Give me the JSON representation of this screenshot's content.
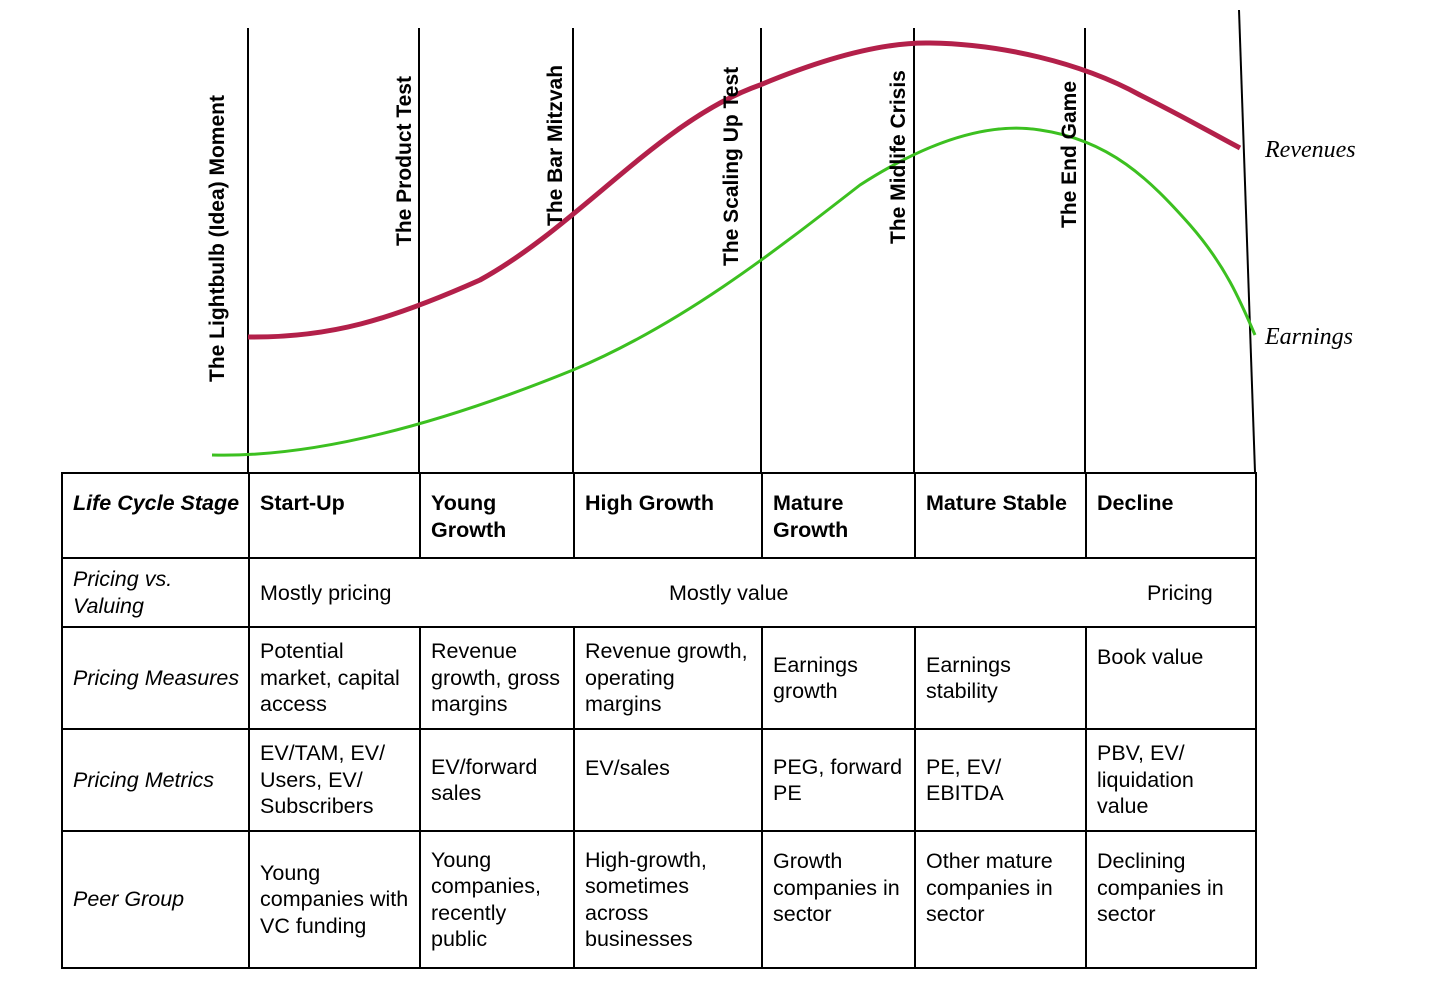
{
  "curves": {
    "revenues_label": "Revenues",
    "earnings_label": "Earnings",
    "revenues_color": "#b3204a",
    "earnings_color": "#3cc020"
  },
  "milestones": [
    "The Lightbulb (Idea) Moment",
    "The Product Test",
    "The Bar Mitzvah",
    "The Scaling Up Test",
    "The Midlife Crisis",
    "The End Game"
  ],
  "table": {
    "row_headers": {
      "stage": "Life Cycle Stage",
      "pricing_vs_valuing": "Pricing vs. Valuing",
      "pricing_measures": "Pricing Measures",
      "pricing_metrics": "Pricing Metrics",
      "peer_group": "Peer Group"
    },
    "stages": [
      "Start-Up",
      "Young Growth",
      "High Growth",
      "Mature Growth",
      "Mature Stable",
      "Decline"
    ],
    "pricing_vs_valuing": {
      "left": "Mostly pricing",
      "middle": "Mostly value",
      "right": "Pricing"
    },
    "pricing_measures": [
      "Potential market, capital access",
      "Revenue growth, gross margins",
      "Revenue growth, operating margins",
      "Earnings growth",
      "Earnings stability",
      "Book value"
    ],
    "pricing_metrics": [
      "EV/TAM, EV/ Users, EV/ Subscribers",
      "EV/forward sales",
      "EV/sales",
      "PEG, forward PE",
      "PE, EV/ EBITDA",
      "PBV, EV/ liquidation value"
    ],
    "peer_group": [
      "Young companies with VC funding",
      "Young companies, recently public",
      "High-growth, sometimes across businesses",
      "Growth companies in sector",
      "Other mature companies in sector",
      "Declining companies in sector"
    ]
  }
}
